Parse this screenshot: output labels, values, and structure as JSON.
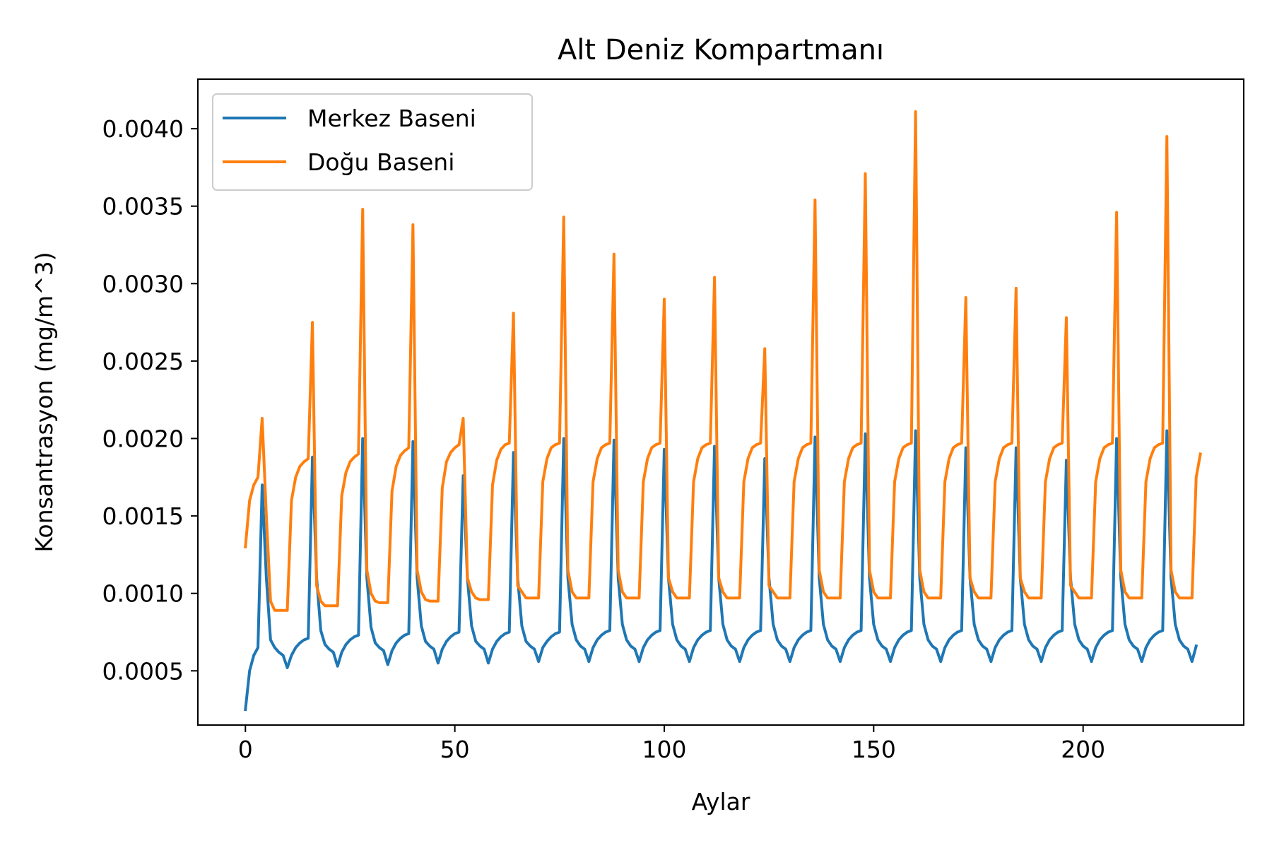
{
  "chart_data": {
    "type": "line",
    "title": "Alt Deniz Kompartmanı",
    "xlabel": "Aylar",
    "ylabel": "Konsantrasyon (mg/m^3)",
    "xlim": [
      -11.35,
      238.35
    ],
    "ylim": [
      0.00015,
      0.00432
    ],
    "x_ticks": [
      0,
      50,
      100,
      150,
      200
    ],
    "x_tick_labels": [
      "0",
      "50",
      "100",
      "150",
      "200"
    ],
    "y_ticks": [
      0.0005,
      0.001,
      0.0015,
      0.002,
      0.0025,
      0.003,
      0.0035,
      0.004
    ],
    "y_tick_labels": [
      "0.0005",
      "0.0010",
      "0.0015",
      "0.0020",
      "0.0025",
      "0.0030",
      "0.0035",
      "0.0040"
    ],
    "grid": false,
    "legend_position": "top-left",
    "x_start": 0,
    "x_step": 1,
    "series": [
      {
        "name": "Merkez Baseni",
        "color": "#1f77b4",
        "values": [
          0.00025,
          0.0005,
          0.0006,
          0.00065,
          0.0017,
          0.0011,
          0.0007,
          0.00065,
          0.00062,
          0.0006,
          0.00052,
          0.0006,
          0.00065,
          0.00068,
          0.0007,
          0.00071,
          0.00188,
          0.0011,
          0.00076,
          0.00067,
          0.00064,
          0.00062,
          0.00053,
          0.00062,
          0.00067,
          0.0007,
          0.00072,
          0.00073,
          0.002,
          0.0011,
          0.00078,
          0.00068,
          0.00065,
          0.00063,
          0.00054,
          0.00063,
          0.00068,
          0.00071,
          0.00073,
          0.00074,
          0.00198,
          0.0011,
          0.00079,
          0.00069,
          0.00066,
          0.00064,
          0.00055,
          0.00064,
          0.00069,
          0.00072,
          0.00074,
          0.00075,
          0.00176,
          0.0011,
          0.00079,
          0.00069,
          0.00066,
          0.00064,
          0.00055,
          0.00064,
          0.00069,
          0.00072,
          0.00074,
          0.00075,
          0.00191,
          0.0011,
          0.00079,
          0.00069,
          0.00066,
          0.00064,
          0.00056,
          0.00065,
          0.00069,
          0.00072,
          0.00074,
          0.00075,
          0.002,
          0.0011,
          0.0008,
          0.0007,
          0.00066,
          0.00064,
          0.00056,
          0.00065,
          0.0007,
          0.00073,
          0.00075,
          0.00076,
          0.00199,
          0.0011,
          0.0008,
          0.0007,
          0.00066,
          0.00064,
          0.00056,
          0.00065,
          0.0007,
          0.00073,
          0.00075,
          0.00076,
          0.00193,
          0.0011,
          0.0008,
          0.0007,
          0.00066,
          0.00064,
          0.00056,
          0.00065,
          0.0007,
          0.00073,
          0.00075,
          0.00076,
          0.00195,
          0.0011,
          0.0008,
          0.0007,
          0.00066,
          0.00064,
          0.00056,
          0.00065,
          0.0007,
          0.00073,
          0.00075,
          0.00076,
          0.00187,
          0.0011,
          0.0008,
          0.0007,
          0.00066,
          0.00064,
          0.00056,
          0.00065,
          0.0007,
          0.00073,
          0.00075,
          0.00076,
          0.00201,
          0.0011,
          0.0008,
          0.0007,
          0.00066,
          0.00064,
          0.00056,
          0.00065,
          0.0007,
          0.00073,
          0.00075,
          0.00076,
          0.00203,
          0.0011,
          0.0008,
          0.0007,
          0.00066,
          0.00064,
          0.00056,
          0.00065,
          0.0007,
          0.00073,
          0.00075,
          0.00076,
          0.00205,
          0.0011,
          0.0008,
          0.0007,
          0.00066,
          0.00064,
          0.00056,
          0.00065,
          0.0007,
          0.00073,
          0.00075,
          0.00076,
          0.00194,
          0.0011,
          0.0008,
          0.0007,
          0.00066,
          0.00064,
          0.00056,
          0.00065,
          0.0007,
          0.00073,
          0.00075,
          0.00076,
          0.00194,
          0.0011,
          0.0008,
          0.0007,
          0.00066,
          0.00064,
          0.00056,
          0.00065,
          0.0007,
          0.00073,
          0.00075,
          0.00076,
          0.00186,
          0.0011,
          0.0008,
          0.0007,
          0.00066,
          0.00064,
          0.00056,
          0.00065,
          0.0007,
          0.00073,
          0.00075,
          0.00076,
          0.002,
          0.0011,
          0.0008,
          0.0007,
          0.00066,
          0.00064,
          0.00056,
          0.00065,
          0.0007,
          0.00073,
          0.00075,
          0.00076,
          0.00205,
          0.0011,
          0.0008,
          0.0007,
          0.00066,
          0.00064,
          0.00056,
          0.00066
        ]
      },
      {
        "name": "Doğu Baseni",
        "color": "#ff7f0e",
        "values": [
          0.0013,
          0.0016,
          0.0017,
          0.00175,
          0.00213,
          0.0015,
          0.00095,
          0.00089,
          0.00089,
          0.00089,
          0.00089,
          0.0016,
          0.00175,
          0.00182,
          0.00185,
          0.00187,
          0.00275,
          0.00105,
          0.00095,
          0.00092,
          0.00092,
          0.00092,
          0.00092,
          0.00163,
          0.00178,
          0.00185,
          0.00188,
          0.0019,
          0.00348,
          0.00115,
          0.001,
          0.00095,
          0.00094,
          0.00094,
          0.00094,
          0.00166,
          0.00182,
          0.00189,
          0.00192,
          0.00194,
          0.00338,
          0.00115,
          0.00101,
          0.00096,
          0.00095,
          0.00095,
          0.00095,
          0.00168,
          0.00185,
          0.00191,
          0.00194,
          0.00196,
          0.00213,
          0.0011,
          0.00101,
          0.00097,
          0.00096,
          0.00096,
          0.00096,
          0.0017,
          0.00186,
          0.00193,
          0.00196,
          0.00197,
          0.00281,
          0.00105,
          0.00101,
          0.00097,
          0.00097,
          0.00097,
          0.00097,
          0.00172,
          0.00187,
          0.00194,
          0.00196,
          0.00197,
          0.00343,
          0.00115,
          0.00101,
          0.00097,
          0.00097,
          0.00097,
          0.00097,
          0.00172,
          0.00187,
          0.00194,
          0.00196,
          0.00197,
          0.00319,
          0.00115,
          0.00101,
          0.00097,
          0.00097,
          0.00097,
          0.00097,
          0.00172,
          0.00187,
          0.00194,
          0.00196,
          0.00197,
          0.0029,
          0.0011,
          0.00101,
          0.00097,
          0.00097,
          0.00097,
          0.00097,
          0.00172,
          0.00187,
          0.00194,
          0.00196,
          0.00197,
          0.00304,
          0.0011,
          0.00101,
          0.00097,
          0.00097,
          0.00097,
          0.00097,
          0.00172,
          0.00187,
          0.00194,
          0.00196,
          0.00197,
          0.00258,
          0.00105,
          0.00101,
          0.00097,
          0.00097,
          0.00097,
          0.00097,
          0.00172,
          0.00187,
          0.00194,
          0.00196,
          0.00197,
          0.00354,
          0.00115,
          0.00101,
          0.00097,
          0.00097,
          0.00097,
          0.00097,
          0.00172,
          0.00187,
          0.00194,
          0.00196,
          0.00197,
          0.00371,
          0.00115,
          0.00101,
          0.00097,
          0.00097,
          0.00097,
          0.00097,
          0.00172,
          0.00187,
          0.00194,
          0.00196,
          0.00197,
          0.00411,
          0.00115,
          0.00101,
          0.00097,
          0.00097,
          0.00097,
          0.00097,
          0.00172,
          0.00187,
          0.00194,
          0.00196,
          0.00197,
          0.00291,
          0.0011,
          0.00101,
          0.00097,
          0.00097,
          0.00097,
          0.00097,
          0.00172,
          0.00187,
          0.00194,
          0.00196,
          0.00197,
          0.00297,
          0.0011,
          0.00101,
          0.00097,
          0.00097,
          0.00097,
          0.00097,
          0.00172,
          0.00187,
          0.00194,
          0.00196,
          0.00197,
          0.00278,
          0.00105,
          0.00101,
          0.00097,
          0.00097,
          0.00097,
          0.00097,
          0.00172,
          0.00187,
          0.00194,
          0.00196,
          0.00197,
          0.00346,
          0.00115,
          0.00101,
          0.00097,
          0.00097,
          0.00097,
          0.00097,
          0.00172,
          0.00187,
          0.00194,
          0.00196,
          0.00197,
          0.00395,
          0.00115,
          0.00101,
          0.00097,
          0.00097,
          0.00097,
          0.00097,
          0.00175,
          0.0019
        ]
      }
    ]
  }
}
